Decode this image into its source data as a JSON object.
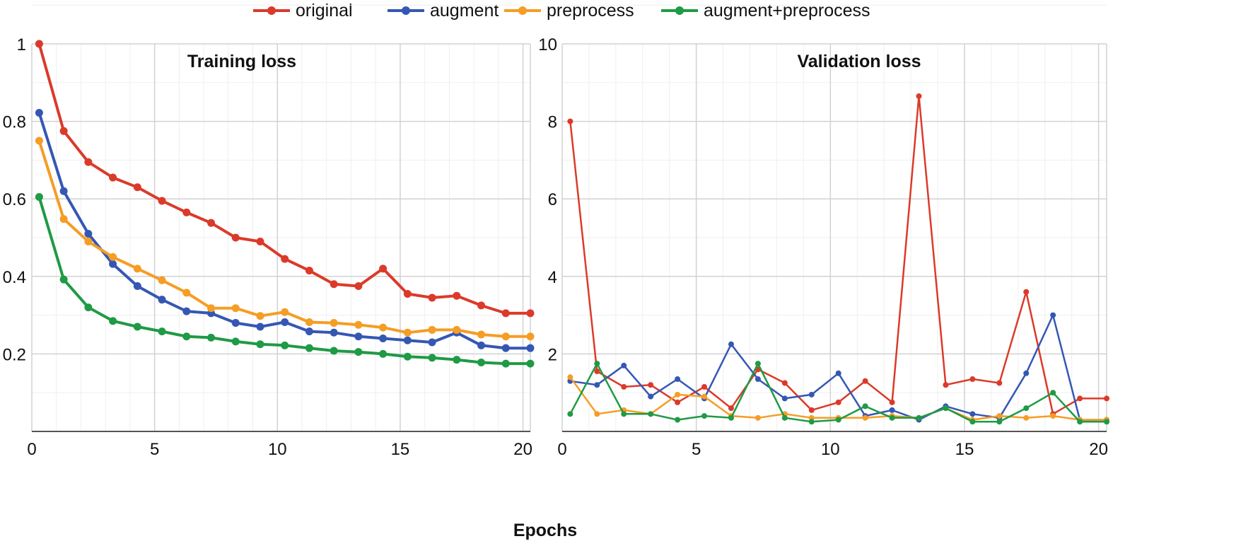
{
  "legend": [
    {
      "name": "original",
      "color": "#db3a2a"
    },
    {
      "name": "augment",
      "color": "#3557b4"
    },
    {
      "name": "preprocess",
      "color": "#f59d24"
    },
    {
      "name": "augment+preprocess",
      "color": "#1f9a45"
    }
  ],
  "xlabel": "Epochs",
  "chart_data": [
    {
      "type": "line",
      "title": "Training loss",
      "xlim": [
        0,
        20.3
      ],
      "ylim": [
        0,
        1
      ],
      "xticks": [
        "0",
        "5",
        "10",
        "15",
        "20"
      ],
      "yticks": [
        "0.2",
        "0.4",
        "0.6",
        "0.8",
        "1"
      ],
      "x": [
        0.3,
        1.3,
        2.3,
        3.3,
        4.3,
        5.3,
        6.3,
        7.3,
        8.3,
        9.3,
        10.3,
        11.3,
        12.3,
        13.3,
        14.3,
        15.3,
        16.3,
        17.3,
        18.3,
        19.3,
        20.3
      ],
      "series": [
        {
          "name": "original",
          "values": [
            1.0,
            0.775,
            0.695,
            0.655,
            0.63,
            0.595,
            0.565,
            0.538,
            0.5,
            0.49,
            0.445,
            0.415,
            0.38,
            0.375,
            0.42,
            0.355,
            0.345,
            0.35,
            0.325,
            0.305,
            0.305
          ]
        },
        {
          "name": "augment",
          "values": [
            0.822,
            0.62,
            0.51,
            0.432,
            0.375,
            0.34,
            0.31,
            0.305,
            0.28,
            0.27,
            0.282,
            0.258,
            0.255,
            0.245,
            0.24,
            0.235,
            0.23,
            0.255,
            0.222,
            0.215,
            0.215
          ]
        },
        {
          "name": "preprocess",
          "values": [
            0.75,
            0.548,
            0.49,
            0.45,
            0.42,
            0.39,
            0.358,
            0.318,
            0.318,
            0.298,
            0.308,
            0.282,
            0.28,
            0.275,
            0.268,
            0.255,
            0.262,
            0.262,
            0.25,
            0.245,
            0.245
          ]
        },
        {
          "name": "augment+preprocess",
          "values": [
            0.605,
            0.392,
            0.32,
            0.285,
            0.27,
            0.258,
            0.245,
            0.242,
            0.232,
            0.225,
            0.222,
            0.215,
            0.208,
            0.205,
            0.2,
            0.193,
            0.19,
            0.185,
            0.178,
            0.175,
            0.175
          ]
        }
      ]
    },
    {
      "type": "line",
      "title": "Validation loss",
      "xlim": [
        0,
        20.3
      ],
      "ylim": [
        0,
        10
      ],
      "xticks": [
        "0",
        "5",
        "10",
        "15",
        "20"
      ],
      "yticks": [
        "2",
        "4",
        "6",
        "8",
        "10"
      ],
      "x": [
        0.3,
        1.3,
        2.3,
        3.3,
        4.3,
        5.3,
        6.3,
        7.3,
        8.3,
        9.3,
        10.3,
        11.3,
        12.3,
        13.3,
        14.3,
        15.3,
        16.3,
        17.3,
        18.3,
        19.3,
        20.3
      ],
      "series": [
        {
          "name": "original",
          "values": [
            8.0,
            1.55,
            1.15,
            1.2,
            0.75,
            1.15,
            0.6,
            1.6,
            1.25,
            0.55,
            0.75,
            1.3,
            0.75,
            8.65,
            1.2,
            1.35,
            1.25,
            3.6,
            0.45,
            0.85,
            0.85
          ]
        },
        {
          "name": "augment",
          "values": [
            1.3,
            1.2,
            1.7,
            0.9,
            1.35,
            0.85,
            2.25,
            1.35,
            0.85,
            0.95,
            1.5,
            0.4,
            0.55,
            0.3,
            0.65,
            0.45,
            0.35,
            1.5,
            3.0,
            0.3,
            0.3
          ]
        },
        {
          "name": "preprocess",
          "values": [
            1.4,
            0.45,
            0.55,
            0.45,
            0.95,
            0.9,
            0.4,
            0.35,
            0.45,
            0.35,
            0.35,
            0.35,
            0.4,
            0.35,
            0.6,
            0.3,
            0.4,
            0.35,
            0.4,
            0.3,
            0.3
          ]
        },
        {
          "name": "augment+preprocess",
          "values": [
            0.45,
            1.75,
            0.45,
            0.45,
            0.3,
            0.4,
            0.35,
            1.75,
            0.35,
            0.25,
            0.3,
            0.65,
            0.35,
            0.35,
            0.6,
            0.25,
            0.25,
            0.6,
            1.0,
            0.25,
            0.25
          ]
        }
      ]
    }
  ]
}
